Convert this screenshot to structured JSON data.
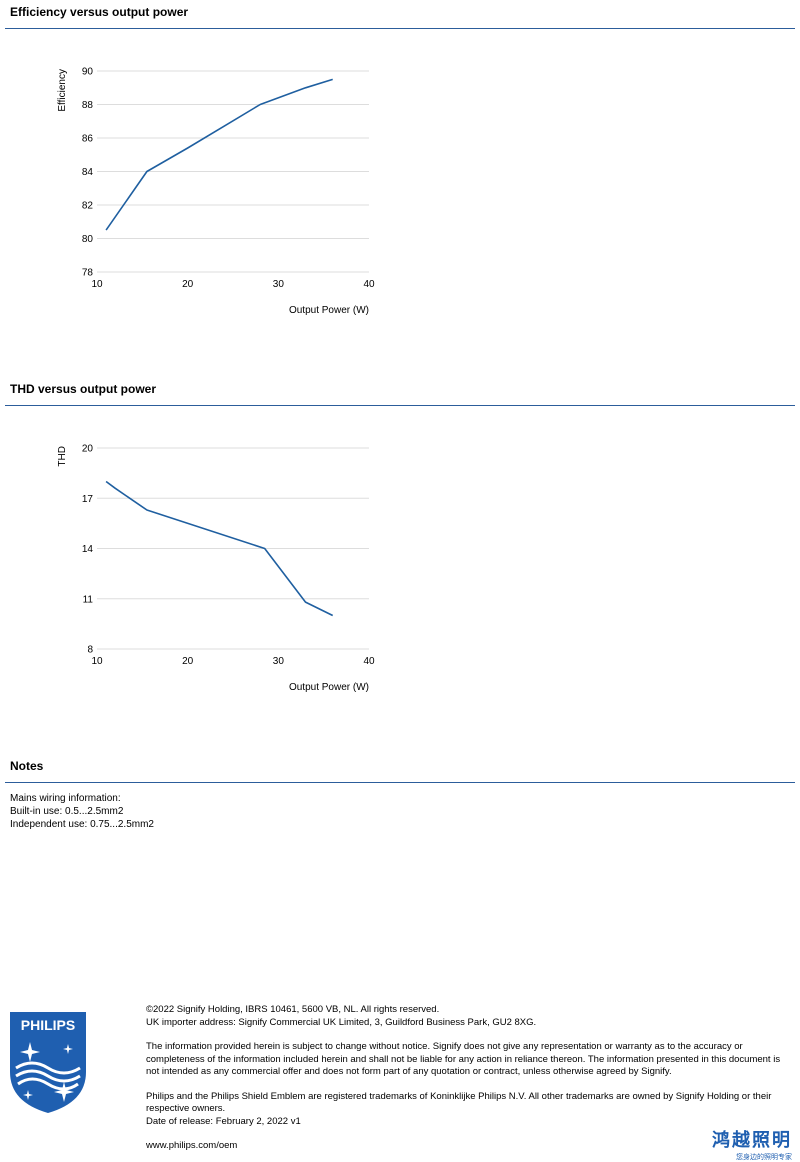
{
  "sections": {
    "efficiency_title": "Efficiency versus output power",
    "thd_title": "THD versus output power",
    "notes_title": "Notes"
  },
  "notes": {
    "lines": [
      "Mains wiring information:",
      "Built-in use: 0.5...2.5mm2",
      "Independent use: 0.75...2.5mm2"
    ]
  },
  "footer": {
    "logo_text": "PHILIPS",
    "copyright": "©2022 Signify Holding, IBRS 10461, 5600 VB, NL. All rights reserved.",
    "importer": "UK importer address: Signify Commercial UK Limited, 3, Guildford Business Park, GU2 8XG.",
    "disclaimer": "The information provided herein is subject to change without notice. Signify does not give any representation or warranty as to the accuracy or completeness of the information included herein and shall not be liable for any action in reliance thereon. The information presented in this document is not intended as any commercial offer and does not form part of any quotation or contract, unless otherwise agreed by Signify.",
    "trademarks": "Philips and the Philips Shield Emblem are registered trademarks of Koninklijke Philips N.V. All other trademarks are owned by Signify Holding or their respective owners.",
    "release_date": "Date of release: February 2, 2022 v1",
    "website": "www.philips.com/oem",
    "brand_cn": "鸿越照明",
    "brand_cn_sub": "您身边的照明专家"
  },
  "colors": {
    "accent": "#2c5d9b",
    "line": "#1f5fa0",
    "grid": "#dddddd"
  },
  "chart_data": [
    {
      "type": "line",
      "xlabel": "Output Power (W)",
      "ylabel": "Efficiency",
      "xlim": [
        10,
        40
      ],
      "ylim": [
        78,
        90
      ],
      "xticks": [
        10,
        20,
        30,
        40
      ],
      "yticks": [
        78,
        80,
        82,
        84,
        86,
        88,
        90
      ],
      "grid": true,
      "series": [
        {
          "x": [
            11,
            15.5,
            20,
            24,
            28,
            33,
            36
          ],
          "y": [
            80.5,
            84,
            85.4,
            86.7,
            88,
            89,
            89.5
          ]
        }
      ]
    },
    {
      "type": "line",
      "xlabel": "Output Power (W)",
      "ylabel": "THD",
      "xlim": [
        10,
        40
      ],
      "ylim": [
        8,
        20
      ],
      "xticks": [
        10,
        20,
        30,
        40
      ],
      "yticks": [
        8,
        11,
        14,
        17,
        20
      ],
      "grid": true,
      "series": [
        {
          "x": [
            11,
            12,
            15.5,
            28.5,
            33,
            36
          ],
          "y": [
            18,
            17.6,
            16.3,
            14,
            10.8,
            10
          ]
        }
      ]
    }
  ]
}
